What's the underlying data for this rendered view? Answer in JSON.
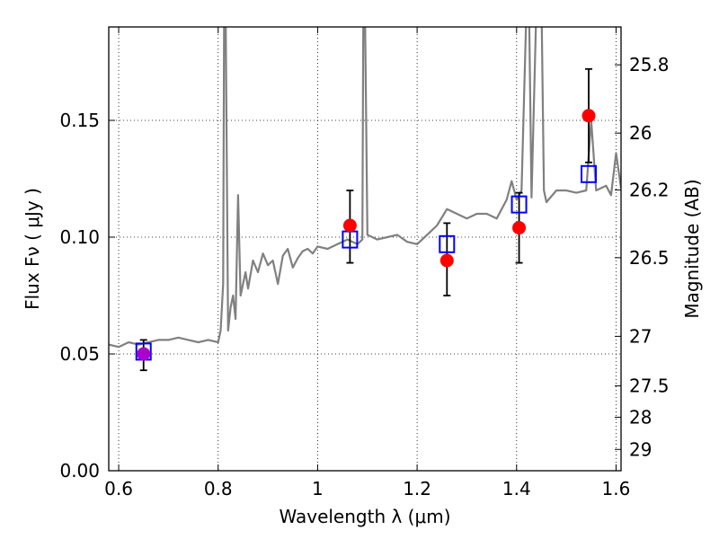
{
  "chart_data": {
    "type": "scatter",
    "xlabel": "Wavelength  λ (μm)",
    "ylabel": "Flux  Fν  ( μJy )",
    "ylabel_right": "Magnitude (AB)",
    "xlim": [
      0.58,
      1.61
    ],
    "ylim": [
      0.0,
      0.19
    ],
    "grid": true,
    "x_ticks": [
      {
        "value": 0.6,
        "label": "0.6"
      },
      {
        "value": 0.8,
        "label": "0.8"
      },
      {
        "value": 1.0,
        "label": "1"
      },
      {
        "value": 1.2,
        "label": "1.2"
      },
      {
        "value": 1.4,
        "label": "1.4"
      },
      {
        "value": 1.6,
        "label": "1.6"
      }
    ],
    "y_ticks": [
      {
        "value": 0.0,
        "label": "0.00"
      },
      {
        "value": 0.05,
        "label": "0.05"
      },
      {
        "value": 0.1,
        "label": "0.10"
      },
      {
        "value": 0.15,
        "label": "0.15"
      }
    ],
    "mag_ticks": [
      {
        "value": 25.8,
        "label": "25.8"
      },
      {
        "value": 26.0,
        "label": "26"
      },
      {
        "value": 26.2,
        "label": "26.2"
      },
      {
        "value": 26.5,
        "label": "26.5"
      },
      {
        "value": 27.0,
        "label": "27"
      },
      {
        "value": 27.5,
        "label": "27.5"
      },
      {
        "value": 28.0,
        "label": "28"
      },
      {
        "value": 29.0,
        "label": "29"
      }
    ],
    "colors": {
      "model": "#808080",
      "observed": "#ff0000",
      "model_photometry": "#0000ff",
      "first_point": "#aa00cc",
      "errorbar": "#000000"
    },
    "series": [
      {
        "kind": "model-spectrum",
        "color": "#808080",
        "x": [
          0.58,
          0.6,
          0.62,
          0.64,
          0.66,
          0.68,
          0.7,
          0.72,
          0.74,
          0.76,
          0.78,
          0.8,
          0.805,
          0.81,
          0.812,
          0.815,
          0.82,
          0.825,
          0.83,
          0.835,
          0.84,
          0.845,
          0.85,
          0.855,
          0.86,
          0.87,
          0.88,
          0.89,
          0.9,
          0.91,
          0.92,
          0.93,
          0.94,
          0.95,
          0.96,
          0.97,
          0.98,
          0.99,
          1.0,
          1.02,
          1.04,
          1.06,
          1.08,
          1.09,
          1.092,
          1.095,
          1.1,
          1.12,
          1.14,
          1.16,
          1.18,
          1.2,
          1.22,
          1.24,
          1.26,
          1.28,
          1.3,
          1.32,
          1.34,
          1.36,
          1.38,
          1.39,
          1.4,
          1.41,
          1.42,
          1.425,
          1.43,
          1.44,
          1.45,
          1.455,
          1.46,
          1.48,
          1.5,
          1.52,
          1.54,
          1.55,
          1.56,
          1.58,
          1.59,
          1.6,
          1.61
        ],
        "y": [
          0.054,
          0.053,
          0.055,
          0.054,
          0.055,
          0.056,
          0.056,
          0.057,
          0.056,
          0.055,
          0.056,
          0.055,
          0.06,
          0.08,
          0.2,
          0.2,
          0.06,
          0.07,
          0.075,
          0.065,
          0.118,
          0.075,
          0.08,
          0.085,
          0.078,
          0.09,
          0.085,
          0.093,
          0.088,
          0.09,
          0.08,
          0.092,
          0.095,
          0.087,
          0.091,
          0.094,
          0.095,
          0.093,
          0.096,
          0.095,
          0.097,
          0.099,
          0.097,
          0.099,
          0.2,
          0.2,
          0.101,
          0.099,
          0.1,
          0.101,
          0.098,
          0.097,
          0.101,
          0.105,
          0.112,
          0.11,
          0.108,
          0.11,
          0.11,
          0.108,
          0.116,
          0.124,
          0.116,
          0.12,
          0.2,
          0.2,
          0.117,
          0.2,
          0.2,
          0.12,
          0.115,
          0.12,
          0.12,
          0.119,
          0.12,
          0.15,
          0.12,
          0.122,
          0.118,
          0.136,
          0.121
        ]
      },
      {
        "kind": "model-photometry",
        "marker": "open-square",
        "color": "#0000ff",
        "x": [
          0.65,
          1.065,
          1.26,
          1.405,
          1.545
        ],
        "y": [
          0.051,
          0.099,
          0.097,
          0.114,
          0.127
        ]
      },
      {
        "kind": "observed",
        "marker": "filled-circle",
        "color": "#ff0000",
        "x": [
          0.65,
          1.065,
          1.26,
          1.405,
          1.545
        ],
        "y": [
          0.05,
          0.105,
          0.09,
          0.104,
          0.152
        ],
        "err_low": [
          0.007,
          0.016,
          0.015,
          0.015,
          0.02
        ],
        "err_high": [
          0.006,
          0.015,
          0.016,
          0.015,
          0.02
        ]
      }
    ]
  }
}
